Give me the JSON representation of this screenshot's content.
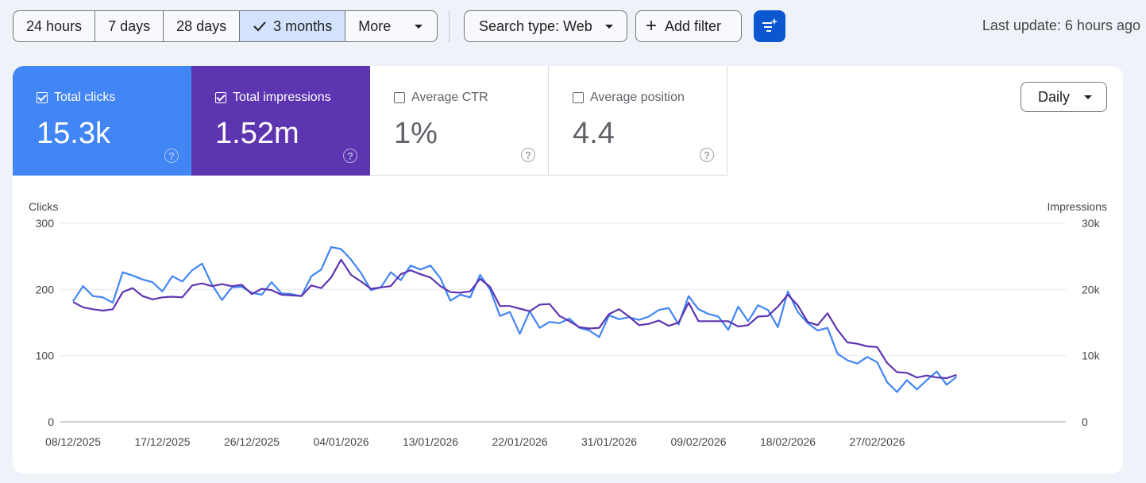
{
  "toolbar": {
    "ranges": [
      {
        "label": "24 hours",
        "selected": false
      },
      {
        "label": "7 days",
        "selected": false
      },
      {
        "label": "28 days",
        "selected": false
      },
      {
        "label": "3 months",
        "selected": true
      },
      {
        "label": "More",
        "selected": false
      }
    ],
    "search_type": "Search type: Web",
    "add_filter": "Add filter",
    "ai_icon": "sparkle-filter-icon",
    "last_update": "Last update: 6 hours ago"
  },
  "metrics": [
    {
      "label": "Total clicks",
      "value": "15.3k",
      "checked": true,
      "color": "#4285f4"
    },
    {
      "label": "Total impressions",
      "value": "1.52m",
      "checked": true,
      "color": "#5e35b1"
    },
    {
      "label": "Average CTR",
      "value": "1%",
      "checked": false
    },
    {
      "label": "Average position",
      "value": "4.4",
      "checked": false
    }
  ],
  "granularity": "Daily",
  "chart_data": {
    "type": "line",
    "ylabel_left": "Clicks",
    "ylabel_right": "Impressions",
    "y_left_ticks": [
      "0",
      "100",
      "200",
      "300"
    ],
    "y_right_ticks": [
      "0",
      "10k",
      "20k",
      "30k"
    ],
    "ylim_left": [
      0,
      300
    ],
    "ylim_right": [
      0,
      30000
    ],
    "x_tick_labels": [
      "08/12/2025",
      "17/12/2025",
      "26/12/2025",
      "04/01/2026",
      "13/01/2026",
      "22/01/2026",
      "31/01/2026",
      "09/02/2026",
      "18/02/2026",
      "27/02/2026"
    ],
    "x_start": "08/12/2025",
    "grid": true,
    "series": [
      {
        "name": "Total clicks",
        "color": "#4285f4",
        "axis": "left",
        "values": [
          182,
          205,
          190,
          188,
          180,
          226,
          221,
          215,
          211,
          197,
          220,
          212,
          229,
          239,
          207,
          184,
          203,
          204,
          195,
          192,
          211,
          194,
          193,
          190,
          220,
          230,
          264,
          261,
          245,
          225,
          199,
          203,
          226,
          214,
          236,
          230,
          236,
          217,
          183,
          192,
          188,
          222,
          200,
          160,
          166,
          133,
          167,
          142,
          151,
          149,
          156,
          142,
          138,
          128,
          161,
          155,
          158,
          154,
          159,
          169,
          172,
          147,
          190,
          170,
          163,
          159,
          139,
          174,
          152,
          176,
          169,
          143,
          197,
          166,
          149,
          138,
          142,
          103,
          93,
          88,
          98,
          90,
          60,
          45,
          63,
          49,
          63,
          76,
          56,
          68
        ],
        "notes": "daily values estimated from the chart"
      },
      {
        "name": "Total impressions",
        "color": "#5e35b1",
        "axis": "right",
        "values": [
          18100,
          17300,
          17000,
          16800,
          17000,
          19600,
          20200,
          19000,
          18500,
          18800,
          18900,
          18800,
          20600,
          20900,
          20500,
          20800,
          20500,
          20700,
          19300,
          20100,
          19900,
          19200,
          19100,
          19000,
          20600,
          20200,
          21800,
          24500,
          22200,
          21200,
          20100,
          20300,
          20500,
          22300,
          22900,
          22300,
          21800,
          20500,
          19600,
          19500,
          19700,
          21600,
          20400,
          17500,
          17500,
          17100,
          16700,
          17700,
          17800,
          16000,
          15200,
          14300,
          14100,
          14200,
          16300,
          17000,
          15900,
          14600,
          14800,
          15300,
          14500,
          15000,
          18000,
          15200,
          15200,
          15200,
          15200,
          14400,
          14600,
          15900,
          16000,
          17400,
          19200,
          17600,
          15100,
          14600,
          16400,
          13900,
          12000,
          11800,
          11400,
          11300,
          8900,
          7500,
          7400,
          6700,
          7000,
          6700,
          6600,
          7100
        ]
      }
    ]
  }
}
